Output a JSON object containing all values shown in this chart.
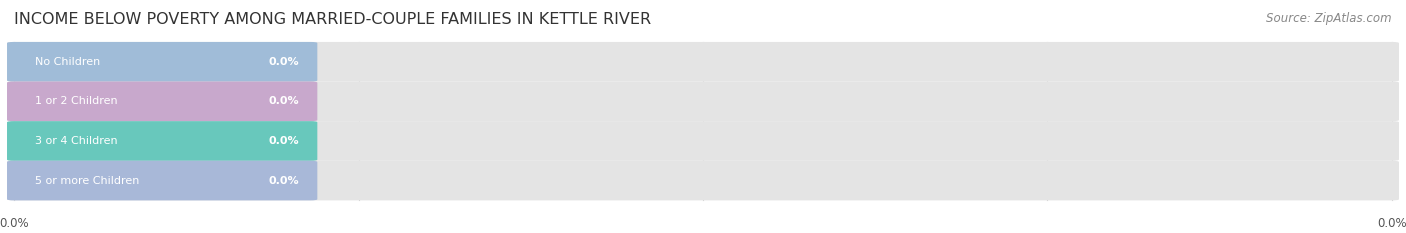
{
  "title": "INCOME BELOW POVERTY AMONG MARRIED-COUPLE FAMILIES IN KETTLE RIVER",
  "source": "Source: ZipAtlas.com",
  "categories": [
    "No Children",
    "1 or 2 Children",
    "3 or 4 Children",
    "5 or more Children"
  ],
  "values": [
    0.0,
    0.0,
    0.0,
    0.0
  ],
  "bar_colors": [
    "#a0bcd8",
    "#c8a8cc",
    "#68c8bc",
    "#a8b8d8"
  ],
  "bar_bg_color": "#e4e4e4",
  "title_fontsize": 11.5,
  "source_fontsize": 8.5,
  "tick_fontsize": 8.5,
  "background_color": "#ffffff",
  "grid_color": "#d0d0d0",
  "text_color": "#555555",
  "value_color": "#ffffff"
}
